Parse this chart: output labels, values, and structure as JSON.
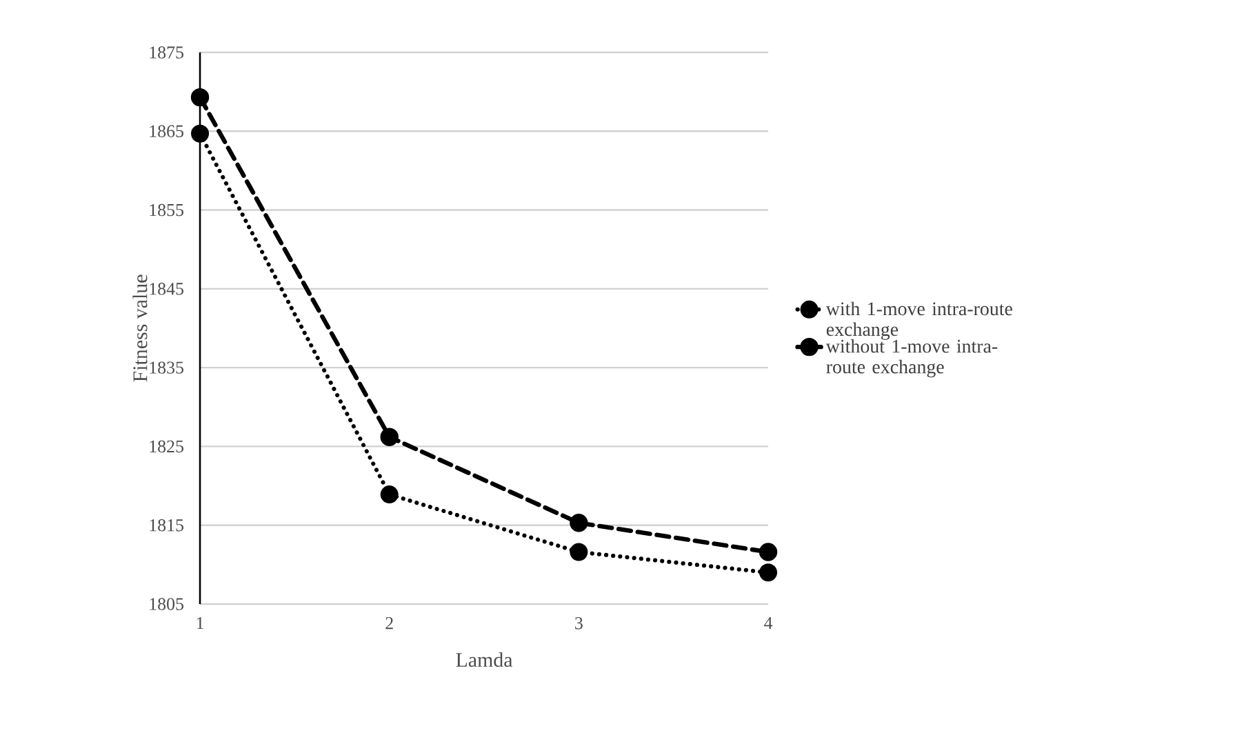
{
  "chart_data": {
    "type": "line",
    "xlabel": "Lamda",
    "ylabel": "Fitness value",
    "x": [
      1,
      2,
      3,
      4
    ],
    "series": [
      {
        "name": "with 1-move intra-route exchange",
        "color": "#000000",
        "line_style": "dotted",
        "values": [
          1864.7,
          1818.9,
          1811.6,
          1809.0
        ]
      },
      {
        "name": "without 1-move intra-route exchange",
        "color": "#000000",
        "line_style": "dashed",
        "values": [
          1869.3,
          1826.2,
          1815.3,
          1811.6
        ]
      }
    ],
    "xlim": [
      1,
      4
    ],
    "ylim": [
      1805,
      1875
    ],
    "xticks": [
      1,
      2,
      3,
      4
    ],
    "yticks": [
      1805,
      1815,
      1825,
      1835,
      1845,
      1855,
      1865,
      1875
    ],
    "grid": "y",
    "legend": "right",
    "marker": "circle"
  }
}
